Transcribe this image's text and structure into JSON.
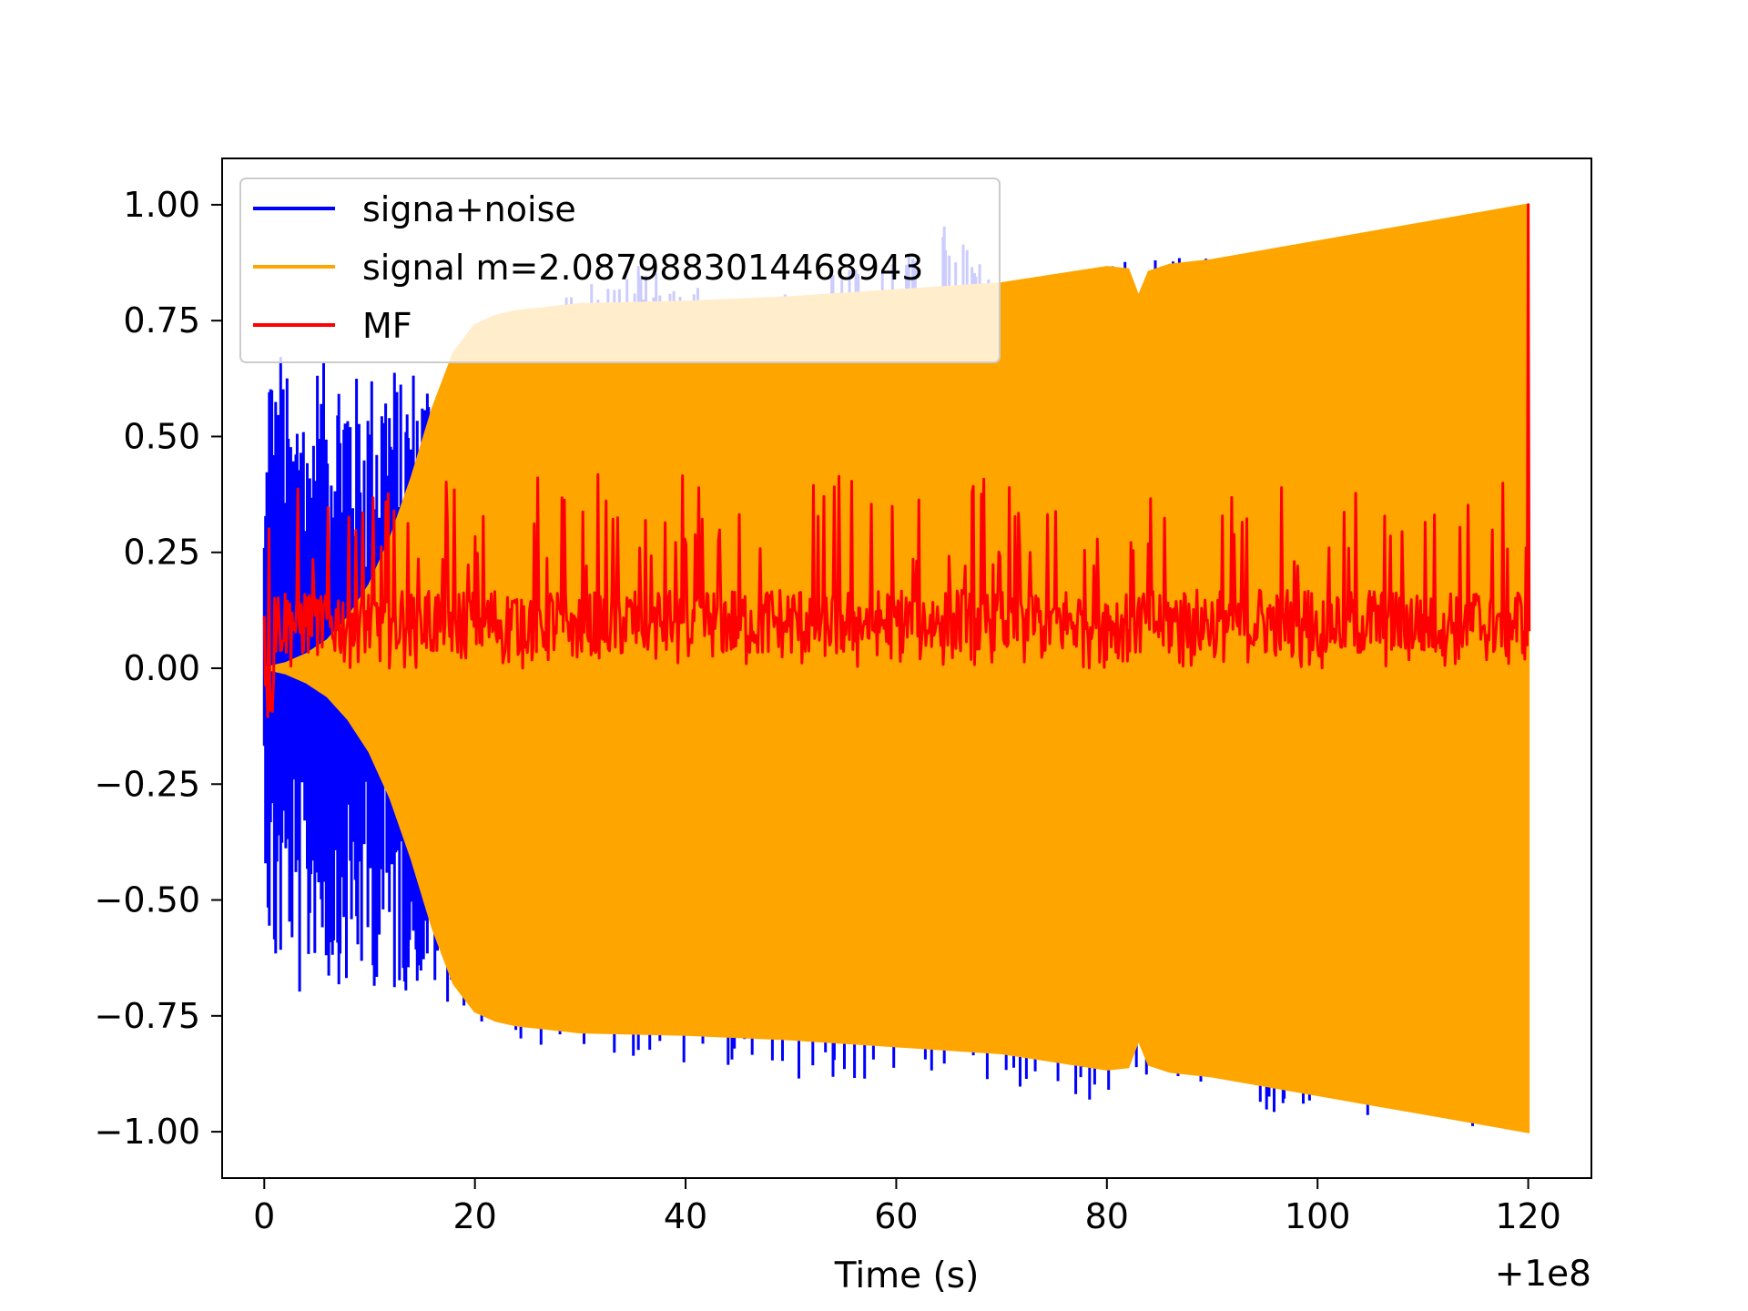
{
  "chart_data": {
    "type": "line",
    "title": "",
    "xlabel": "Time (s)",
    "ylabel": "",
    "x_offset_text": "+1e8",
    "xlim": [
      -4,
      126
    ],
    "ylim": [
      -1.1,
      1.1
    ],
    "x_ticks": [
      0,
      20,
      40,
      60,
      80,
      100,
      120
    ],
    "x_tick_labels": [
      "0",
      "20",
      "40",
      "60",
      "80",
      "100",
      "120"
    ],
    "y_ticks": [
      1.0,
      0.75,
      0.5,
      0.25,
      0.0,
      -0.25,
      -0.5,
      -0.75,
      -1.0
    ],
    "y_tick_labels": [
      "1.00",
      "0.75",
      "0.50",
      "0.25",
      "0.00",
      "−0.25",
      "−0.50",
      "−0.75",
      "−1.00"
    ],
    "grid": false,
    "legend_position": "upper-left",
    "series": [
      {
        "name": "signa+noise",
        "color": "#0000ff",
        "x": [
          0,
          0.5,
          1,
          1.5,
          2,
          2.5,
          3,
          3.5,
          4,
          4.5,
          5,
          6,
          7,
          8,
          9,
          10,
          11,
          12,
          13,
          14,
          15,
          16,
          17,
          18,
          19,
          20,
          22,
          24,
          27,
          31.5,
          47.5,
          65,
          69.5,
          114.7,
          120
        ],
        "upper": [
          0.35,
          0.78,
          0.62,
          0.72,
          0.68,
          0.55,
          0.6,
          0.82,
          0.5,
          0.62,
          0.68,
          0.65,
          0.7,
          0.7,
          0.62,
          0.65,
          0.68,
          0.7,
          0.62,
          0.68,
          0.66,
          0.7,
          0.62,
          0.66,
          0.67,
          0.6,
          0.65,
          0.7,
          0.78,
          0.9,
          0.8,
          0.98,
          0.85,
          0.95,
          1.0
        ],
        "lower": [
          -0.35,
          -0.65,
          -0.7,
          -0.68,
          -0.62,
          -0.6,
          -0.8,
          -0.7,
          -0.72,
          -0.66,
          -0.62,
          -0.7,
          -0.68,
          -0.72,
          -0.68,
          -0.72,
          -0.66,
          -0.74,
          -0.7,
          -0.7,
          -0.7,
          -0.72,
          -0.74,
          -0.7,
          -0.74,
          -0.76,
          -0.8,
          -0.82,
          -0.84,
          -0.82,
          -0.92,
          -0.89,
          -0.92,
          -0.99,
          -1.0
        ]
      },
      {
        "name": "signal m=2.0879883014468943",
        "color": "#ffa500",
        "x": [
          0,
          2,
          4,
          6,
          8,
          10,
          12,
          14,
          16,
          18,
          20,
          22,
          24,
          26,
          30,
          40,
          50,
          60,
          70,
          80,
          82,
          83,
          84,
          86,
          90,
          100,
          110,
          120
        ],
        "amplitude": [
          0.0,
          0.01,
          0.03,
          0.06,
          0.11,
          0.18,
          0.28,
          0.41,
          0.56,
          0.68,
          0.74,
          0.76,
          0.77,
          0.775,
          0.785,
          0.79,
          0.8,
          0.815,
          0.83,
          0.865,
          0.86,
          0.8,
          0.855,
          0.87,
          0.88,
          0.92,
          0.96,
          1.0
        ]
      },
      {
        "name": "MF",
        "color": "#ff0000",
        "x_start": 0,
        "x_end": 120,
        "baseline": 0.1,
        "min": 0.0,
        "typical_max": 0.4,
        "spike_x": 120,
        "spike_y": 1.0
      }
    ]
  },
  "legend": {
    "entries": [
      "signa+noise",
      "signal m=2.0879883014468943",
      "MF"
    ]
  }
}
